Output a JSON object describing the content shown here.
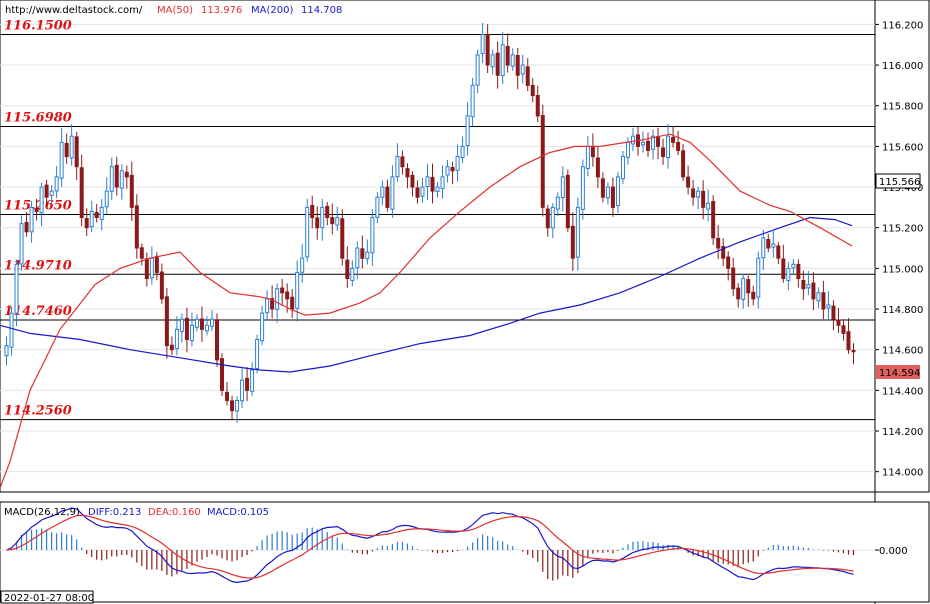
{
  "header": {
    "url": "http://www.deltastock.com/",
    "ma50_label": "MA(50)",
    "ma50_value": "113.976",
    "ma200_label": "MA(200)",
    "ma200_value": "114.708"
  },
  "macd_header": {
    "name": "MACD(26,12,9)",
    "diff_label": "DIFF:0.213",
    "dea_label": "DEA:0.160",
    "macd_label": "MACD:0.105"
  },
  "timestamp": "2022-01-27 08:00",
  "current_price_label": "115.566",
  "last_price_label": "114.594",
  "macd_zero_label": "0.000",
  "colors": {
    "up": "#2a7fd4",
    "down": "#8a1a1a",
    "ma50": "#e03030",
    "ma200": "#1818c8",
    "level_text": "#e01010",
    "last_price_bg": "#e06060"
  },
  "chart_data": {
    "type": "candlestick",
    "ylim": [
      113.9,
      116.32
    ],
    "y_ticks": [
      "114.000",
      "114.200",
      "114.400",
      "114.600",
      "114.800",
      "115.000",
      "115.200",
      "115.400",
      "115.600",
      "115.800",
      "116.000",
      "116.200"
    ],
    "levels": [
      "116.1500",
      "115.6980",
      "115.2650",
      "114.9710",
      "114.7460",
      "114.2560"
    ],
    "closes": [
      114.62,
      114.78,
      115.02,
      115.22,
      115.18,
      115.3,
      115.28,
      115.4,
      115.35,
      115.38,
      115.45,
      115.62,
      115.55,
      115.65,
      115.5,
      115.25,
      115.2,
      115.28,
      115.25,
      115.3,
      115.38,
      115.5,
      115.4,
      115.48,
      115.45,
      115.3,
      115.1,
      115.05,
      114.95,
      115.05,
      114.98,
      114.85,
      114.62,
      114.6,
      114.7,
      114.75,
      114.65,
      114.72,
      114.75,
      114.7,
      114.72,
      114.75,
      114.55,
      114.4,
      114.35,
      114.3,
      114.35,
      114.45,
      114.4,
      114.5,
      114.65,
      114.78,
      114.85,
      114.8,
      114.9,
      114.88,
      114.85,
      114.8,
      114.98,
      115.05,
      115.3,
      115.25,
      115.2,
      115.3,
      115.25,
      115.22,
      115.25,
      115.05,
      114.95,
      115.0,
      115.1,
      115.05,
      115.08,
      115.25,
      115.35,
      115.4,
      115.3,
      115.45,
      115.55,
      115.5,
      115.45,
      115.4,
      115.35,
      115.4,
      115.45,
      115.38,
      115.4,
      115.45,
      115.5,
      115.48,
      115.55,
      115.6,
      115.75,
      115.9,
      116.05,
      116.15,
      116.0,
      116.05,
      115.95,
      116.1,
      116.0,
      116.05,
      115.95,
      116.0,
      115.9,
      115.85,
      115.75,
      115.3,
      115.2,
      115.3,
      115.35,
      115.45,
      115.2,
      115.05,
      115.3,
      115.5,
      115.6,
      115.55,
      115.45,
      115.35,
      115.4,
      115.3,
      115.45,
      115.55,
      115.62,
      115.65,
      115.6,
      115.62,
      115.58,
      115.65,
      115.6,
      115.55,
      115.65,
      115.62,
      115.58,
      115.45,
      115.4,
      115.35,
      115.38,
      115.3,
      115.32,
      115.15,
      115.1,
      115.05,
      115.0,
      114.9,
      114.85,
      114.95,
      114.88,
      114.85,
      115.05,
      115.15,
      115.1,
      115.12,
      115.05,
      114.95,
      115.0,
      115.02,
      114.95,
      114.9,
      114.92,
      114.85,
      114.88,
      114.8,
      114.82,
      114.75,
      114.72,
      114.68,
      114.6,
      114.59
    ],
    "ma50": [
      [
        0,
        113.92
      ],
      [
        10,
        114.05
      ],
      [
        30,
        114.4
      ],
      [
        60,
        114.7
      ],
      [
        95,
        114.92
      ],
      [
        120,
        115.0
      ],
      [
        150,
        115.05
      ],
      [
        180,
        115.08
      ],
      [
        200,
        114.98
      ],
      [
        230,
        114.88
      ],
      [
        260,
        114.86
      ],
      [
        270,
        114.85
      ],
      [
        290,
        114.8
      ],
      [
        305,
        114.77
      ],
      [
        330,
        114.78
      ],
      [
        360,
        114.83
      ],
      [
        380,
        114.88
      ],
      [
        400,
        114.98
      ],
      [
        430,
        115.15
      ],
      [
        460,
        115.28
      ],
      [
        490,
        115.4
      ],
      [
        520,
        115.5
      ],
      [
        550,
        115.57
      ],
      [
        575,
        115.6
      ],
      [
        600,
        115.6
      ],
      [
        640,
        115.63
      ],
      [
        670,
        115.66
      ],
      [
        690,
        115.62
      ],
      [
        710,
        115.53
      ],
      [
        740,
        115.38
      ],
      [
        770,
        115.31
      ],
      [
        790,
        115.28
      ],
      [
        820,
        115.2
      ],
      [
        852,
        115.11
      ]
    ],
    "ma200": [
      [
        0,
        114.72
      ],
      [
        30,
        114.68
      ],
      [
        80,
        114.65
      ],
      [
        130,
        114.6
      ],
      [
        180,
        114.56
      ],
      [
        230,
        114.52
      ],
      [
        260,
        114.5
      ],
      [
        290,
        114.49
      ],
      [
        330,
        114.52
      ],
      [
        370,
        114.57
      ],
      [
        420,
        114.63
      ],
      [
        470,
        114.67
      ],
      [
        510,
        114.73
      ],
      [
        540,
        114.78
      ],
      [
        580,
        114.82
      ],
      [
        620,
        114.88
      ],
      [
        660,
        114.96
      ],
      [
        700,
        115.05
      ],
      [
        740,
        115.13
      ],
      [
        780,
        115.2
      ],
      [
        810,
        115.25
      ],
      [
        835,
        115.24
      ],
      [
        852,
        115.21
      ]
    ]
  }
}
